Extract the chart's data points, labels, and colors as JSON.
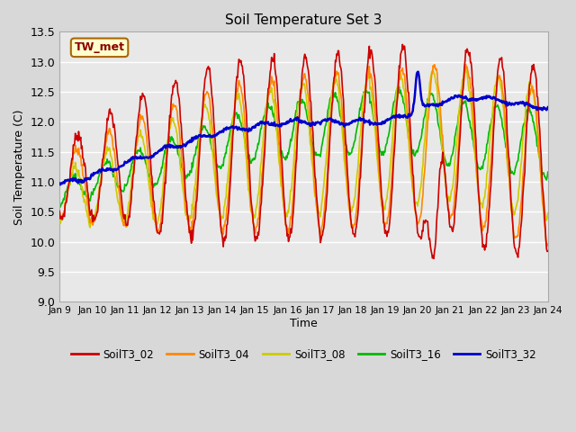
{
  "title": "Soil Temperature Set 3",
  "xlabel": "Time",
  "ylabel": "Soil Temperature (C)",
  "xlim": [
    0,
    15
  ],
  "ylim": [
    9.0,
    13.5
  ],
  "yticks": [
    9.0,
    9.5,
    10.0,
    10.5,
    11.0,
    11.5,
    12.0,
    12.5,
    13.0,
    13.5
  ],
  "xtick_labels": [
    "Jan 9",
    "Jan 10",
    "Jan 11",
    "Jan 12",
    "Jan 13",
    "Jan 14",
    "Jan 15",
    "Jan 16",
    "Jan 17",
    "Jan 18",
    "Jan 19",
    "Jan 20",
    "Jan 21",
    "Jan 22",
    "Jan 23",
    "Jan 24"
  ],
  "fig_bg_color": "#d8d8d8",
  "plot_bg_color": "#e8e8e8",
  "grid_color": "#ffffff",
  "annotation_text": "TW_met",
  "annotation_color": "#8b0000",
  "annotation_bg": "#ffffcc",
  "annotation_edge": "#aa6600",
  "series_colors": {
    "SoilT3_02": "#cc0000",
    "SoilT3_04": "#ff8800",
    "SoilT3_08": "#cccc00",
    "SoilT3_16": "#00bb00",
    "SoilT3_32": "#0000cc"
  },
  "series_lw": {
    "SoilT3_02": 1.2,
    "SoilT3_04": 1.2,
    "SoilT3_08": 1.2,
    "SoilT3_16": 1.2,
    "SoilT3_32": 1.8
  }
}
